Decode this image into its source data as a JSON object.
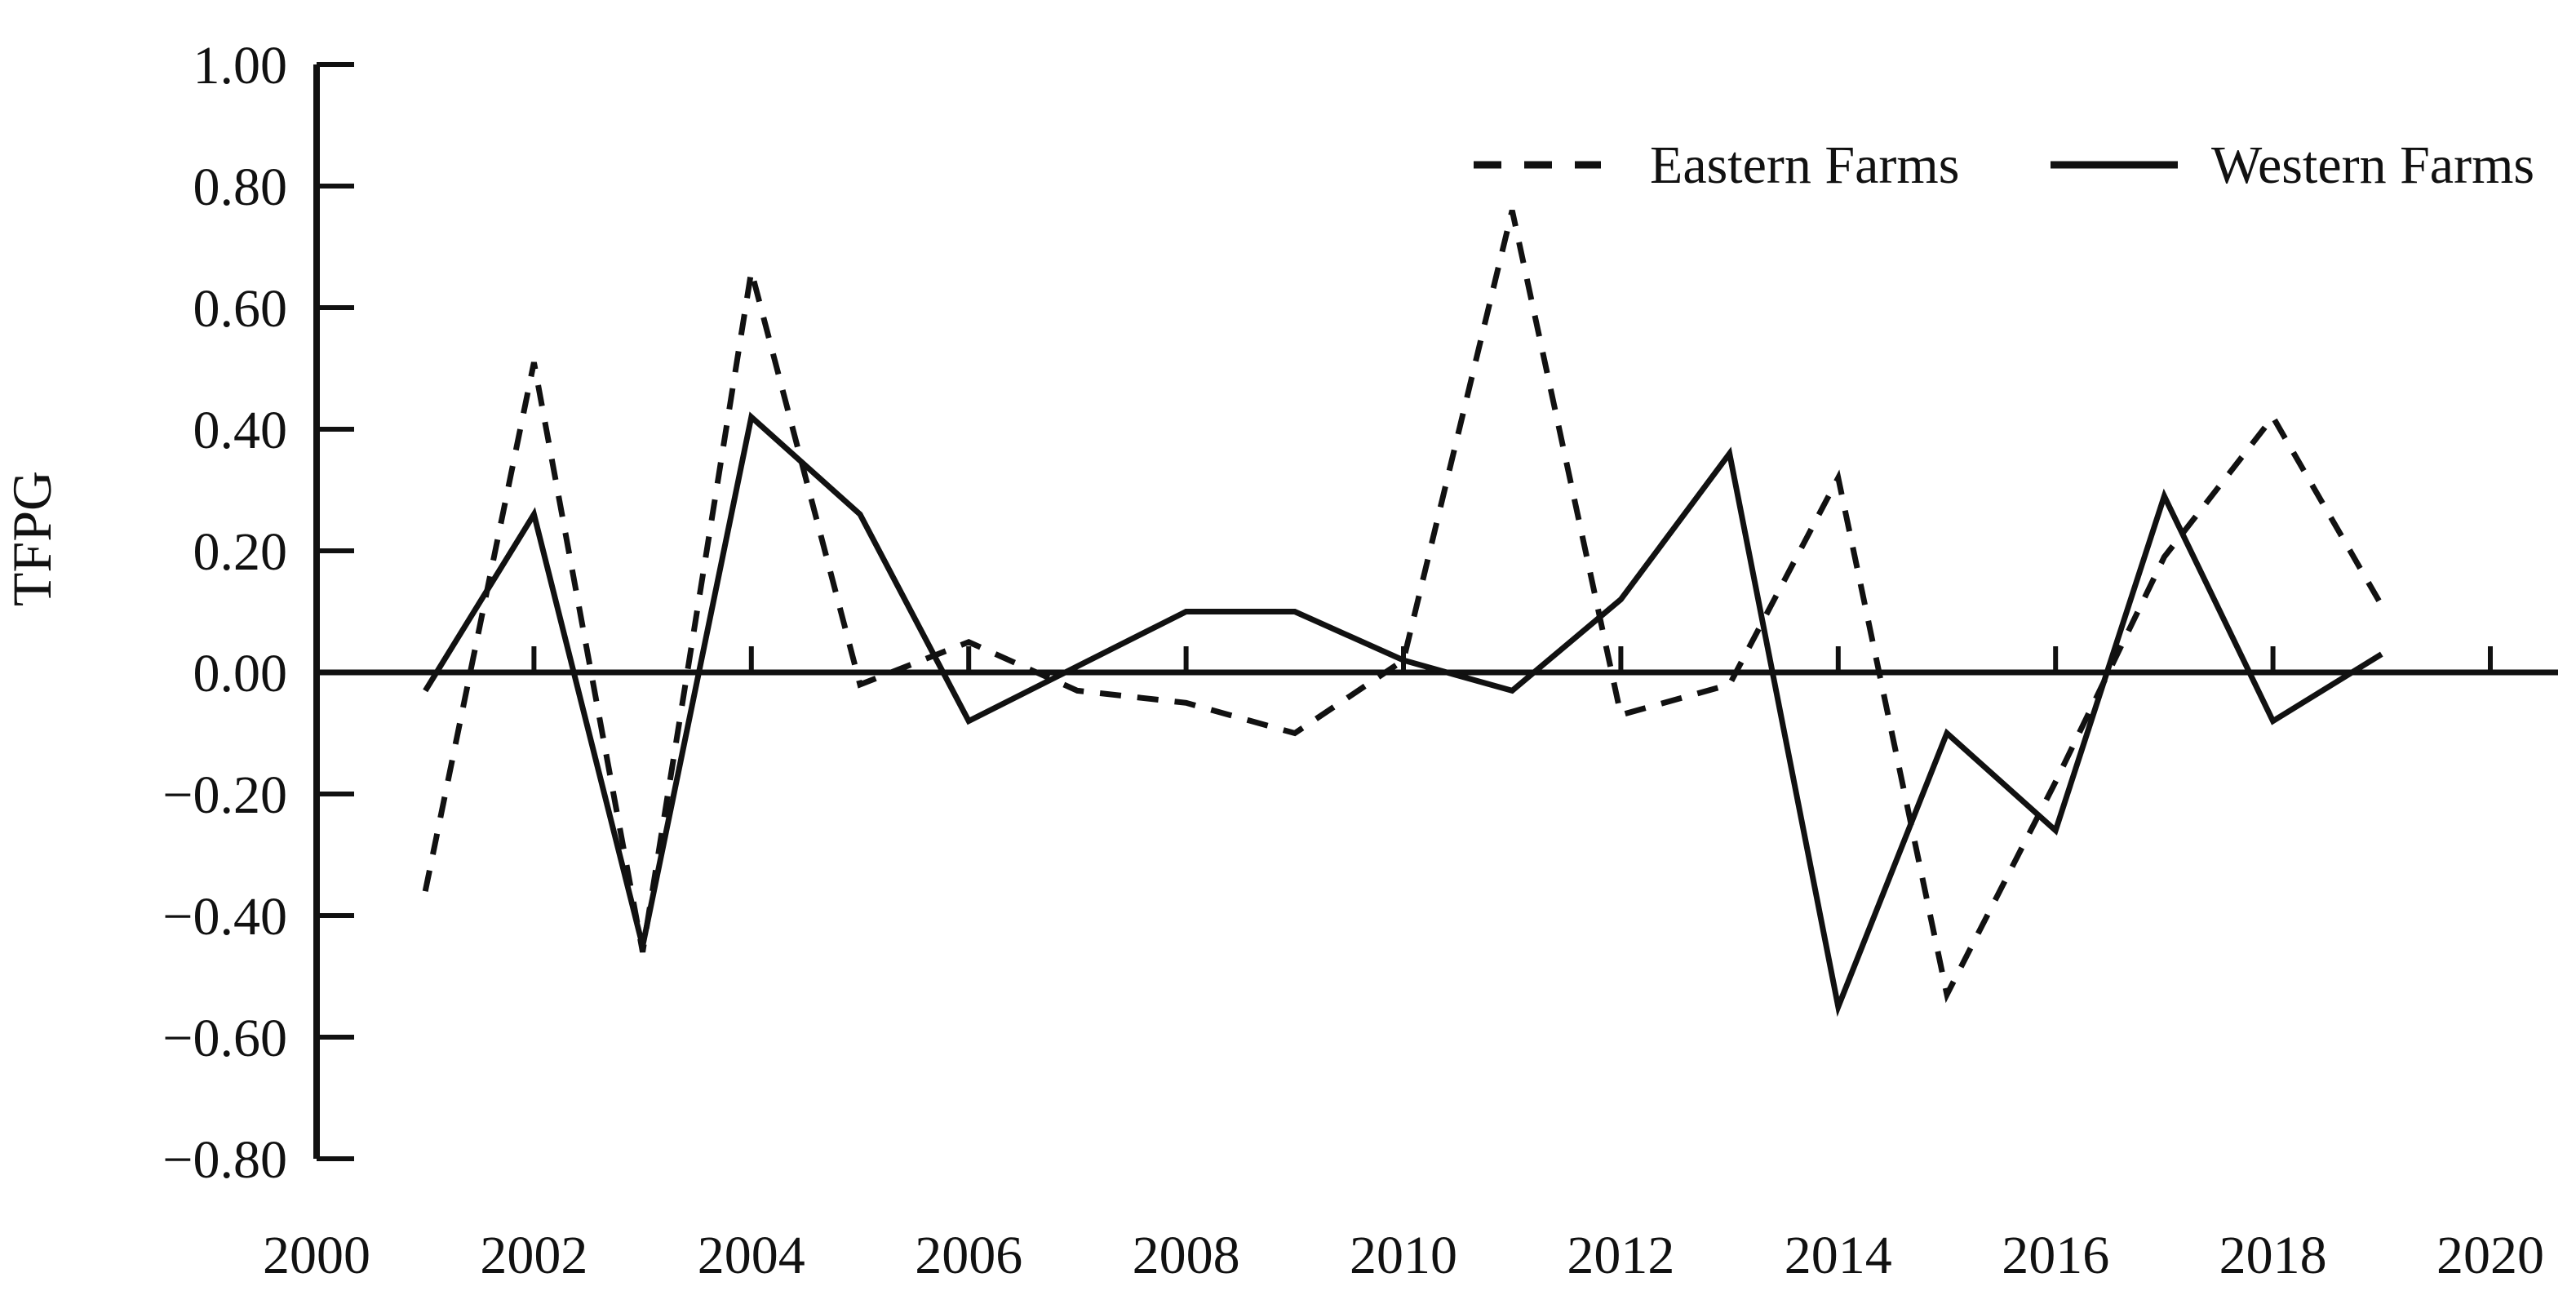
{
  "chart_data": {
    "type": "line",
    "title": "",
    "xlabel": "",
    "ylabel": "TFPG",
    "x": [
      2001,
      2002,
      2003,
      2004,
      2005,
      2006,
      2007,
      2008,
      2009,
      2010,
      2011,
      2012,
      2013,
      2014,
      2015,
      2016,
      2017,
      2018,
      2019
    ],
    "series": [
      {
        "name": "Eastern Farms",
        "style": "dashed",
        "values": [
          -0.36,
          0.51,
          -0.46,
          0.66,
          -0.02,
          0.05,
          -0.03,
          -0.05,
          -0.1,
          0.02,
          0.76,
          -0.07,
          -0.02,
          0.32,
          -0.53,
          -0.18,
          0.19,
          0.42,
          0.11
        ]
      },
      {
        "name": "Western Farms",
        "style": "solid",
        "values": [
          -0.03,
          0.26,
          -0.45,
          0.42,
          0.26,
          -0.08,
          0.01,
          0.1,
          0.1,
          0.02,
          -0.03,
          0.12,
          0.36,
          -0.55,
          -0.1,
          -0.26,
          0.29,
          -0.08,
          0.03
        ]
      }
    ],
    "x_ticks": [
      2000,
      2002,
      2004,
      2006,
      2008,
      2010,
      2012,
      2014,
      2016,
      2018,
      2020
    ],
    "x_tick_labels": [
      "2000",
      "2002",
      "2004",
      "2006",
      "2008",
      "2010",
      "2012",
      "2014",
      "2016",
      "2018",
      "2020"
    ],
    "y_ticks": [
      1.0,
      0.8,
      0.6,
      0.4,
      0.2,
      0.0,
      -0.2,
      -0.4,
      -0.6,
      -0.8
    ],
    "y_tick_labels": [
      "1.00",
      "0.80",
      "0.60",
      "0.40",
      "0.20",
      "0.00",
      "−0.20",
      "−0.40",
      "−0.60",
      "−0.80"
    ],
    "xlim": [
      2000,
      2020
    ],
    "ylim": [
      -0.8,
      1.0
    ],
    "grid": false,
    "legend_position": "top-right",
    "line_color": "#111111",
    "background": "#ffffff"
  }
}
